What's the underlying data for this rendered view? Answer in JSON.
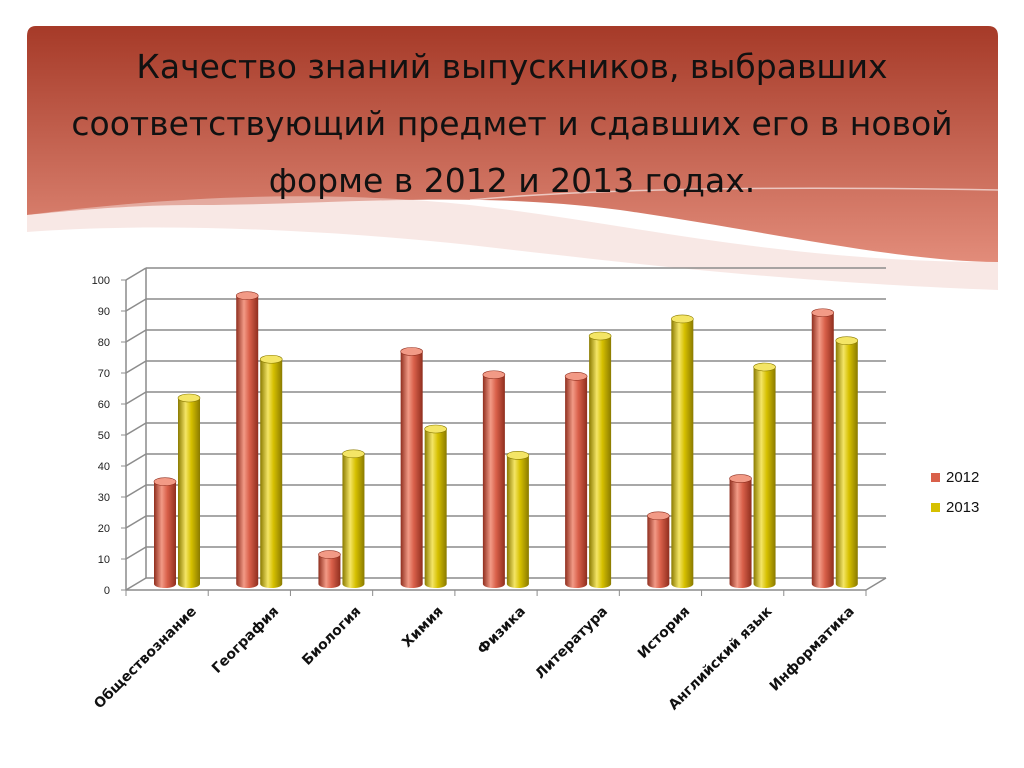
{
  "title": "Качество знаний выпускников, выбравших соответствующий  предмет и  сдавших его в новой форме в 2012 и 2013 годах.",
  "colors": {
    "banner_dark": "#a63a28",
    "banner_light": "#e28c7a",
    "series_2012": "#d9604a",
    "series_2013": "#d6c000"
  },
  "chart_data": {
    "type": "bar",
    "categories": [
      "Обществознание",
      "География",
      "Биология",
      "Химия",
      "Физика",
      "Литература",
      "История",
      "Английский язык",
      "Информатика"
    ],
    "series": [
      {
        "name": "2012",
        "values": [
          33,
          93,
          9.5,
          75,
          67.5,
          67,
          22,
          34,
          87.5
        ]
      },
      {
        "name": "2013",
        "values": [
          60,
          72.5,
          42,
          50,
          41.5,
          80,
          85.5,
          70,
          78.5
        ]
      }
    ],
    "yticks": [
      0,
      10,
      20,
      30,
      40,
      50,
      60,
      70,
      80,
      90,
      100
    ],
    "ylim": [
      0,
      100
    ],
    "grid": true,
    "three_d": true,
    "legend": "right"
  }
}
